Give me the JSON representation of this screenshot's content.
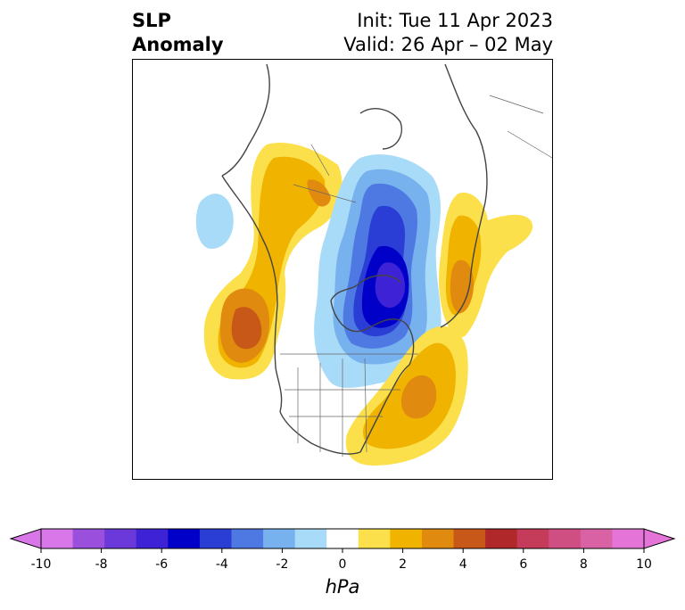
{
  "title": {
    "left_line1": "SLP",
    "left_line2": "Anomaly",
    "right_line1": "Init: Tue 11 Apr 2023",
    "right_line2": "Valid: 26 Apr – 02 May"
  },
  "map": {
    "projection": "polar stereographic (North America / Arctic)",
    "features": [
      "coastlines",
      "country borders",
      "US state borders",
      "Canadian province borders"
    ]
  },
  "colorbar": {
    "unit": "hPa",
    "extend": "both",
    "ticks": [
      "-10",
      "-8",
      "-6",
      "-4",
      "-2",
      "0",
      "2",
      "4",
      "6",
      "8",
      "10"
    ],
    "colors": [
      "#d977e9",
      "#9b4fdd",
      "#6b39d9",
      "#3e22d6",
      "#0000c8",
      "#2a3ed6",
      "#4e78e2",
      "#77b1ee",
      "#a8dbf7",
      "#ffffff",
      "#fbe04c",
      "#f0b400",
      "#e08a10",
      "#c85818",
      "#b0282a",
      "#c43c5a",
      "#cf4f82",
      "#d862a4",
      "#e474d8"
    ],
    "left_arrow_color": "#d977e9",
    "right_arrow_color": "#e474d8"
  },
  "anomaly_regions": [
    {
      "name": "negative center over Hudson Bay",
      "sign": "negative",
      "min_level": -6
    },
    {
      "name": "positive ridge northeast Pacific",
      "sign": "positive",
      "max_level": 5
    },
    {
      "name": "positive western Canada / Alaska",
      "sign": "positive",
      "max_level": 2
    },
    {
      "name": "positive western North Atlantic",
      "sign": "positive",
      "max_level": 4
    },
    {
      "name": "positive Greenland / Iceland",
      "sign": "positive",
      "max_level": 4
    },
    {
      "name": "weak negative Bering / Siberia",
      "sign": "negative",
      "min_level": -2
    }
  ]
}
